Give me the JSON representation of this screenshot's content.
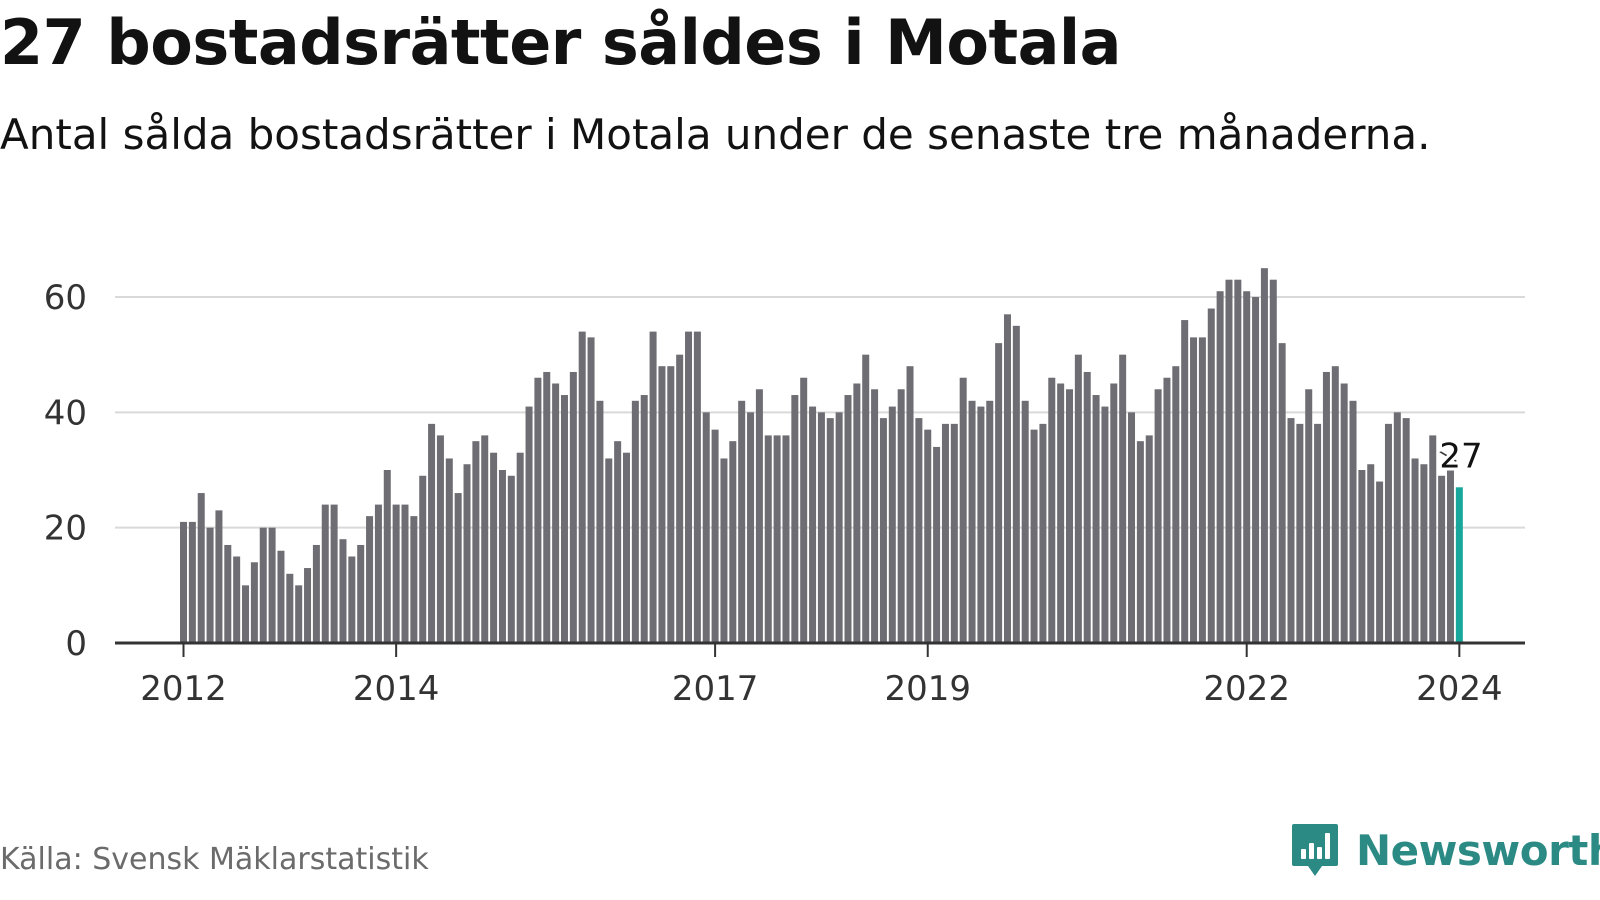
{
  "title": "27 bostadsrätter såldes i Motala",
  "subtitle": "Antal sålda bostadsrätter i Motala under de senaste tre månaderna.",
  "source": "Källa: Svensk Mäklarstatistik",
  "brand": {
    "name": "Newsworthy",
    "icon": "newsworthy-logo-icon",
    "color": "#2b8a84"
  },
  "colors": {
    "bar": "#6e6d73",
    "highlight": "#17a79b",
    "grid": "#d9d9d9",
    "axis": "#333333"
  },
  "chart_data": {
    "type": "bar",
    "title": "27 bostadsrätter såldes i Motala",
    "xlabel": "",
    "ylabel": "",
    "ylim": [
      0,
      65
    ],
    "yticks": [
      0,
      20,
      40,
      60
    ],
    "xticks": [
      {
        "label": "2012",
        "index": 0
      },
      {
        "label": "2014",
        "index": 24
      },
      {
        "label": "2017",
        "index": 60
      },
      {
        "label": "2019",
        "index": 84
      },
      {
        "label": "2022",
        "index": 120
      },
      {
        "label": "2024",
        "index": 144
      }
    ],
    "start": "2012-01",
    "granularity": "monthly, 3-month rolling count",
    "values": [
      21,
      21,
      26,
      20,
      23,
      17,
      15,
      10,
      14,
      20,
      20,
      16,
      12,
      10,
      13,
      17,
      24,
      24,
      18,
      15,
      17,
      22,
      24,
      30,
      24,
      24,
      22,
      29,
      38,
      36,
      32,
      26,
      31,
      35,
      36,
      33,
      30,
      29,
      33,
      41,
      46,
      47,
      45,
      43,
      47,
      54,
      53,
      42,
      32,
      35,
      33,
      42,
      43,
      54,
      48,
      48,
      50,
      54,
      54,
      40,
      37,
      32,
      35,
      42,
      40,
      44,
      36,
      36,
      36,
      43,
      46,
      41,
      40,
      39,
      40,
      43,
      45,
      50,
      44,
      39,
      41,
      44,
      48,
      39,
      37,
      34,
      38,
      38,
      46,
      42,
      41,
      42,
      52,
      57,
      55,
      42,
      37,
      38,
      46,
      45,
      44,
      50,
      47,
      43,
      41,
      45,
      50,
      40,
      35,
      36,
      44,
      46,
      48,
      56,
      53,
      53,
      58,
      61,
      63,
      63,
      61,
      60,
      65,
      63,
      52,
      39,
      38,
      44,
      38,
      47,
      48,
      45,
      42,
      30,
      31,
      28,
      38,
      40,
      39,
      32,
      31,
      36,
      29,
      30,
      27
    ],
    "highlight_index": 144,
    "highlight_label": "27"
  }
}
